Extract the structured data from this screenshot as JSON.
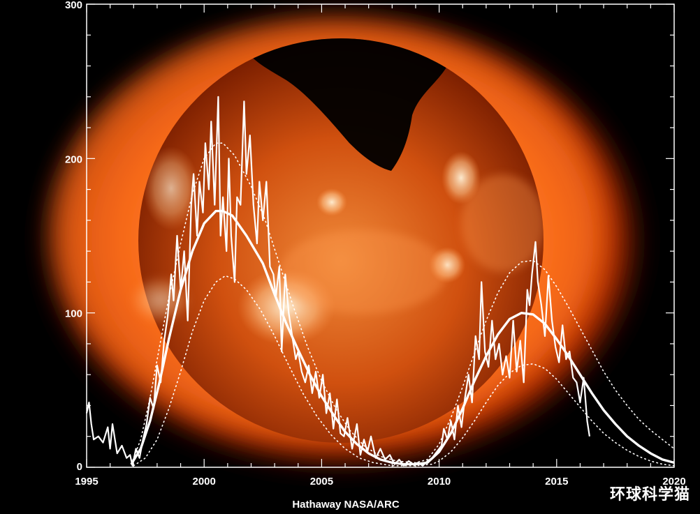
{
  "chart_data": {
    "type": "line",
    "title": "",
    "xlabel": "",
    "ylabel": "",
    "xlim": [
      1995,
      2020
    ],
    "ylim": [
      0,
      300
    ],
    "grid": false,
    "legend": "none",
    "background_image": "sun-xray",
    "x_ticks": [
      1995,
      2000,
      2005,
      2010,
      2015,
      2020
    ],
    "y_ticks": [
      0,
      100,
      200,
      300
    ],
    "x_tick_labels": [
      "1995",
      "2000",
      "2005",
      "2010",
      "2015",
      "2020"
    ],
    "y_tick_labels": [
      "0",
      "100",
      "200",
      "300"
    ],
    "colors": {
      "series": "#ffffff",
      "axis": "#ffffff"
    },
    "series": [
      {
        "role": "monthly",
        "style": "solid",
        "points": [
          [
            1995.0,
            35
          ],
          [
            1995.1,
            42
          ],
          [
            1995.2,
            28
          ],
          [
            1995.3,
            18
          ],
          [
            1995.5,
            20
          ],
          [
            1995.7,
            16
          ],
          [
            1995.9,
            26
          ],
          [
            1996.0,
            12
          ],
          [
            1996.1,
            28
          ],
          [
            1996.3,
            9
          ],
          [
            1996.5,
            14
          ],
          [
            1996.7,
            6
          ],
          [
            1996.85,
            8
          ],
          [
            1996.95,
            1
          ],
          [
            1997.1,
            12
          ],
          [
            1997.25,
            6
          ],
          [
            1997.4,
            18
          ],
          [
            1997.55,
            28
          ],
          [
            1997.7,
            45
          ],
          [
            1997.85,
            38
          ],
          [
            1998.0,
            66
          ],
          [
            1998.15,
            55
          ],
          [
            1998.3,
            82
          ],
          [
            1998.45,
            98
          ],
          [
            1998.6,
            125
          ],
          [
            1998.7,
            108
          ],
          [
            1998.85,
            150
          ],
          [
            1999.0,
            115
          ],
          [
            1999.15,
            140
          ],
          [
            1999.3,
            95
          ],
          [
            1999.45,
            170
          ],
          [
            1999.55,
            190
          ],
          [
            1999.7,
            150
          ],
          [
            1999.8,
            185
          ],
          [
            1999.95,
            165
          ],
          [
            2000.05,
            210
          ],
          [
            2000.2,
            180
          ],
          [
            2000.3,
            224
          ],
          [
            2000.45,
            170
          ],
          [
            2000.6,
            240
          ],
          [
            2000.7,
            150
          ],
          [
            2000.8,
            175
          ],
          [
            2000.95,
            140
          ],
          [
            2001.05,
            200
          ],
          [
            2001.15,
            150
          ],
          [
            2001.3,
            120
          ],
          [
            2001.4,
            175
          ],
          [
            2001.55,
            170
          ],
          [
            2001.7,
            237
          ],
          [
            2001.8,
            190
          ],
          [
            2001.95,
            215
          ],
          [
            2002.1,
            170
          ],
          [
            2002.25,
            145
          ],
          [
            2002.35,
            185
          ],
          [
            2002.5,
            160
          ],
          [
            2002.65,
            185
          ],
          [
            2002.8,
            130
          ],
          [
            2002.95,
            125
          ],
          [
            2003.05,
            110
          ],
          [
            2003.2,
            130
          ],
          [
            2003.3,
            75
          ],
          [
            2003.45,
            125
          ],
          [
            2003.6,
            100
          ],
          [
            2003.75,
            85
          ],
          [
            2003.9,
            70
          ],
          [
            2004.0,
            75
          ],
          [
            2004.15,
            62
          ],
          [
            2004.3,
            55
          ],
          [
            2004.45,
            66
          ],
          [
            2004.6,
            48
          ],
          [
            2004.75,
            62
          ],
          [
            2004.9,
            45
          ],
          [
            2005.05,
            60
          ],
          [
            2005.2,
            35
          ],
          [
            2005.35,
            48
          ],
          [
            2005.5,
            25
          ],
          [
            2005.65,
            44
          ],
          [
            2005.8,
            22
          ],
          [
            2005.95,
            20
          ],
          [
            2006.1,
            32
          ],
          [
            2006.3,
            12
          ],
          [
            2006.5,
            28
          ],
          [
            2006.65,
            8
          ],
          [
            2006.8,
            18
          ],
          [
            2006.95,
            10
          ],
          [
            2007.1,
            20
          ],
          [
            2007.3,
            6
          ],
          [
            2007.5,
            12
          ],
          [
            2007.7,
            5
          ],
          [
            2007.9,
            8
          ],
          [
            2008.1,
            2
          ],
          [
            2008.3,
            5
          ],
          [
            2008.5,
            1
          ],
          [
            2008.7,
            4
          ],
          [
            2008.9,
            2
          ],
          [
            2009.1,
            3
          ],
          [
            2009.3,
            1
          ],
          [
            2009.5,
            4
          ],
          [
            2009.7,
            6
          ],
          [
            2009.9,
            10
          ],
          [
            2010.1,
            14
          ],
          [
            2010.2,
            25
          ],
          [
            2010.35,
            18
          ],
          [
            2010.5,
            30
          ],
          [
            2010.65,
            18
          ],
          [
            2010.8,
            40
          ],
          [
            2010.95,
            26
          ],
          [
            2011.1,
            45
          ],
          [
            2011.25,
            60
          ],
          [
            2011.4,
            42
          ],
          [
            2011.55,
            85
          ],
          [
            2011.7,
            70
          ],
          [
            2011.8,
            120
          ],
          [
            2011.95,
            75
          ],
          [
            2012.1,
            65
          ],
          [
            2012.25,
            95
          ],
          [
            2012.4,
            70
          ],
          [
            2012.55,
            80
          ],
          [
            2012.7,
            60
          ],
          [
            2012.85,
            72
          ],
          [
            2013.0,
            58
          ],
          [
            2013.15,
            95
          ],
          [
            2013.3,
            62
          ],
          [
            2013.45,
            82
          ],
          [
            2013.6,
            55
          ],
          [
            2013.75,
            115
          ],
          [
            2013.85,
            105
          ],
          [
            2013.95,
            125
          ],
          [
            2014.1,
            146
          ],
          [
            2014.2,
            120
          ],
          [
            2014.35,
            105
          ],
          [
            2014.5,
            85
          ],
          [
            2014.65,
            124
          ],
          [
            2014.8,
            95
          ],
          [
            2014.95,
            78
          ],
          [
            2015.1,
            68
          ],
          [
            2015.25,
            92
          ],
          [
            2015.4,
            70
          ],
          [
            2015.55,
            75
          ],
          [
            2015.7,
            58
          ],
          [
            2015.85,
            55
          ],
          [
            2016.0,
            42
          ],
          [
            2016.15,
            58
          ],
          [
            2016.3,
            30
          ],
          [
            2016.4,
            20
          ]
        ]
      },
      {
        "role": "smoothed-prediction",
        "style": "thick",
        "points": [
          [
            1996.9,
            2
          ],
          [
            1997.3,
            12
          ],
          [
            1997.7,
            30
          ],
          [
            1998.1,
            55
          ],
          [
            1998.5,
            83
          ],
          [
            1999.0,
            115
          ],
          [
            1999.5,
            140
          ],
          [
            2000.0,
            158
          ],
          [
            2000.5,
            166
          ],
          [
            2000.8,
            166
          ],
          [
            2001.2,
            163
          ],
          [
            2001.8,
            150
          ],
          [
            2002.5,
            132
          ],
          [
            2003.0,
            112
          ],
          [
            2003.5,
            93
          ],
          [
            2004.0,
            76
          ],
          [
            2004.5,
            60
          ],
          [
            2005.0,
            46
          ],
          [
            2005.5,
            34
          ],
          [
            2006.0,
            23
          ],
          [
            2006.5,
            15
          ],
          [
            2007.0,
            9
          ],
          [
            2007.5,
            5
          ],
          [
            2008.0,
            3
          ],
          [
            2008.5,
            2
          ],
          [
            2009.0,
            2
          ],
          [
            2009.5,
            3
          ],
          [
            2010.0,
            10
          ],
          [
            2010.5,
            22
          ],
          [
            2011.0,
            38
          ],
          [
            2011.5,
            56
          ],
          [
            2012.0,
            72
          ],
          [
            2012.5,
            86
          ],
          [
            2013.0,
            96
          ],
          [
            2013.5,
            100
          ],
          [
            2014.0,
            99
          ],
          [
            2014.5,
            93
          ],
          [
            2015.0,
            83
          ],
          [
            2015.5,
            72
          ],
          [
            2016.0,
            60
          ],
          [
            2016.5,
            48
          ],
          [
            2017.0,
            37
          ],
          [
            2017.5,
            28
          ],
          [
            2018.0,
            20
          ],
          [
            2018.5,
            14
          ],
          [
            2019.0,
            9
          ],
          [
            2019.5,
            5
          ],
          [
            2020.0,
            3
          ]
        ]
      },
      {
        "role": "upper-bound",
        "style": "dotted",
        "points": [
          [
            1996.9,
            2
          ],
          [
            1997.3,
            18
          ],
          [
            1997.7,
            45
          ],
          [
            1998.1,
            78
          ],
          [
            1998.5,
            110
          ],
          [
            1999.0,
            145
          ],
          [
            1999.5,
            177
          ],
          [
            2000.0,
            200
          ],
          [
            2000.5,
            210
          ],
          [
            2000.8,
            210
          ],
          [
            2001.3,
            202
          ],
          [
            2002.0,
            182
          ],
          [
            2002.6,
            160
          ],
          [
            2003.2,
            132
          ],
          [
            2003.8,
            104
          ],
          [
            2004.4,
            78
          ],
          [
            2005.0,
            56
          ],
          [
            2005.6,
            38
          ],
          [
            2006.2,
            24
          ],
          [
            2006.8,
            14
          ],
          [
            2007.5,
            7
          ],
          [
            2008.2,
            4
          ],
          [
            2009.0,
            3
          ],
          [
            2009.5,
            5
          ],
          [
            2010.0,
            15
          ],
          [
            2010.5,
            32
          ],
          [
            2011.0,
            52
          ],
          [
            2011.5,
            74
          ],
          [
            2012.0,
            95
          ],
          [
            2012.5,
            113
          ],
          [
            2013.0,
            126
          ],
          [
            2013.5,
            133
          ],
          [
            2014.0,
            134
          ],
          [
            2014.5,
            128
          ],
          [
            2015.0,
            117
          ],
          [
            2015.5,
            104
          ],
          [
            2016.0,
            90
          ],
          [
            2016.5,
            76
          ],
          [
            2017.0,
            62
          ],
          [
            2017.5,
            50
          ],
          [
            2018.0,
            40
          ],
          [
            2018.5,
            31
          ],
          [
            2019.0,
            24
          ],
          [
            2019.5,
            18
          ],
          [
            2020.0,
            12
          ]
        ]
      },
      {
        "role": "lower-bound",
        "style": "dotted",
        "points": [
          [
            1997.0,
            1
          ],
          [
            1997.5,
            6
          ],
          [
            1998.0,
            18
          ],
          [
            1998.5,
            38
          ],
          [
            1999.0,
            62
          ],
          [
            1999.5,
            88
          ],
          [
            2000.0,
            108
          ],
          [
            2000.5,
            120
          ],
          [
            2000.9,
            124
          ],
          [
            2001.3,
            122
          ],
          [
            2001.8,
            115
          ],
          [
            2002.4,
            102
          ],
          [
            2003.0,
            85
          ],
          [
            2003.6,
            66
          ],
          [
            2004.2,
            48
          ],
          [
            2004.8,
            33
          ],
          [
            2005.4,
            21
          ],
          [
            2006.0,
            12
          ],
          [
            2006.6,
            6
          ],
          [
            2007.2,
            3
          ],
          [
            2008.0,
            1
          ],
          [
            2009.0,
            1
          ],
          [
            2009.7,
            2
          ],
          [
            2010.0,
            4
          ],
          [
            2010.5,
            10
          ],
          [
            2011.0,
            19
          ],
          [
            2011.5,
            30
          ],
          [
            2012.0,
            42
          ],
          [
            2012.5,
            53
          ],
          [
            2013.0,
            61
          ],
          [
            2013.5,
            66
          ],
          [
            2014.0,
            67
          ],
          [
            2014.5,
            64
          ],
          [
            2015.0,
            57
          ],
          [
            2015.5,
            48
          ],
          [
            2016.0,
            39
          ],
          [
            2016.5,
            30
          ],
          [
            2017.0,
            22
          ],
          [
            2017.5,
            16
          ],
          [
            2018.0,
            11
          ],
          [
            2018.5,
            7
          ],
          [
            2019.0,
            4
          ],
          [
            2019.5,
            2
          ],
          [
            2020.0,
            1
          ]
        ]
      }
    ]
  },
  "credit": "Hathaway  NASA/ARC",
  "watermark": "环球科学猫"
}
